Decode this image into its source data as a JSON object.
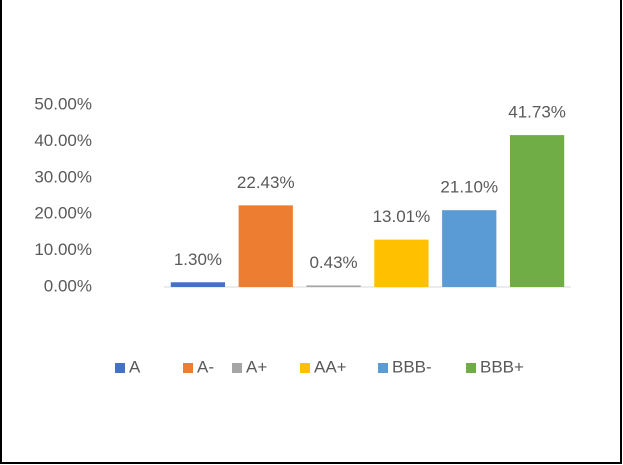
{
  "chart_data": {
    "type": "bar",
    "categories": [
      "A",
      "A-",
      "A+",
      "AA+",
      "BBB-",
      "BBB+"
    ],
    "values": [
      1.3,
      22.43,
      0.43,
      13.01,
      21.1,
      41.73
    ],
    "value_labels": [
      "1.30%",
      "22.43%",
      "0.43%",
      "13.01%",
      "21.10%",
      "41.73%"
    ],
    "colors": [
      "#4472c4",
      "#ed7d31",
      "#a5a5a5",
      "#ffc000",
      "#5b9bd5",
      "#70ad47"
    ],
    "ylim": [
      0,
      50
    ],
    "yticks": [
      {
        "value": 0,
        "label": "0.00%"
      },
      {
        "value": 10,
        "label": "10.00%"
      },
      {
        "value": 20,
        "label": "20.00%"
      },
      {
        "value": 30,
        "label": "30.00%"
      },
      {
        "value": 40,
        "label": "40.00%"
      },
      {
        "value": 50,
        "label": "50.00%"
      }
    ],
    "grid": false,
    "legend": "bottom"
  }
}
